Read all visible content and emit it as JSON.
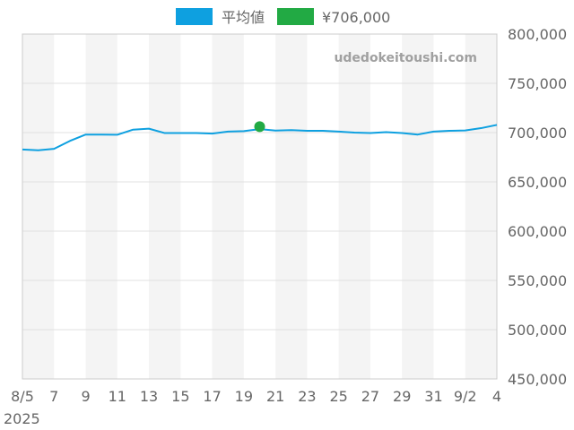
{
  "chart_data": {
    "type": "line",
    "watermark": "udedokeitoushi.com",
    "x_tick_labels": [
      "8/5",
      "7",
      "9",
      "11",
      "13",
      "15",
      "17",
      "19",
      "21",
      "23",
      "25",
      "27",
      "29",
      "31",
      "9/2",
      "4"
    ],
    "x_tick_days": [
      0,
      2,
      4,
      6,
      8,
      10,
      12,
      14,
      16,
      18,
      20,
      22,
      24,
      26,
      28,
      30
    ],
    "year_label": "2025",
    "ylim": [
      450000,
      800000
    ],
    "y_ticks": [
      450000,
      500000,
      550000,
      600000,
      650000,
      700000,
      750000,
      800000
    ],
    "y_tick_labels": [
      "450,000",
      "500,000",
      "550,000",
      "600,000",
      "650,000",
      "700,000",
      "750,000",
      "800,000"
    ],
    "grid": true,
    "legend_position": "top",
    "series": [
      {
        "name": "平均値",
        "color": "#0ea0e0",
        "values": [
          682800,
          682000,
          683500,
          691500,
          698000,
          698000,
          697800,
          703000,
          704000,
          699500,
          699500,
          699500,
          699000,
          701000,
          701500,
          703500,
          702000,
          702500,
          701800,
          701800,
          701000,
          700000,
          699500,
          700500,
          699500,
          698000,
          701000,
          701800,
          702200,
          704500,
          707800
        ]
      },
      {
        "name": "¥706,000",
        "color": "#22aa44",
        "points": [
          {
            "day": 15,
            "value": 706000
          }
        ]
      }
    ]
  }
}
